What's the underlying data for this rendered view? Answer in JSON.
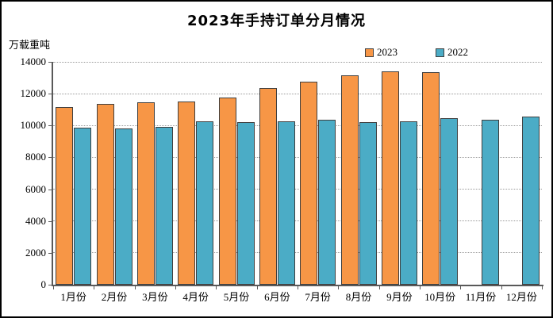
{
  "chart_data": {
    "type": "bar",
    "title": "2023年手持订单分月情况",
    "ylabel": "万载重吨",
    "xlabel": "",
    "categories": [
      "1月份",
      "2月份",
      "3月份",
      "4月份",
      "5月份",
      "6月份",
      "7月份",
      "8月份",
      "9月份",
      "10月份",
      "11月份",
      "12月份"
    ],
    "series": [
      {
        "name": "2023",
        "color": "#F79646",
        "values": [
          11140,
          11350,
          11450,
          11500,
          11770,
          12380,
          12780,
          13160,
          13390,
          13370,
          null,
          null
        ]
      },
      {
        "name": "2022",
        "color": "#4BACC6",
        "values": [
          9850,
          9800,
          9930,
          10280,
          10210,
          10280,
          10350,
          10200,
          10250,
          10440,
          10370,
          10560
        ]
      }
    ],
    "ylim": [
      0,
      14000
    ],
    "yticks": [
      0,
      2000,
      4000,
      6000,
      8000,
      10000,
      12000,
      14000
    ],
    "grid": true,
    "gridline_style": "dotted",
    "legend_position": "top-right"
  },
  "colors": {
    "bar_border": "#3f3f3f",
    "gridline": "#9a9a9a",
    "axis": "#595959",
    "text": "#000000",
    "background": "#ffffff",
    "frame_border": "#000000"
  }
}
